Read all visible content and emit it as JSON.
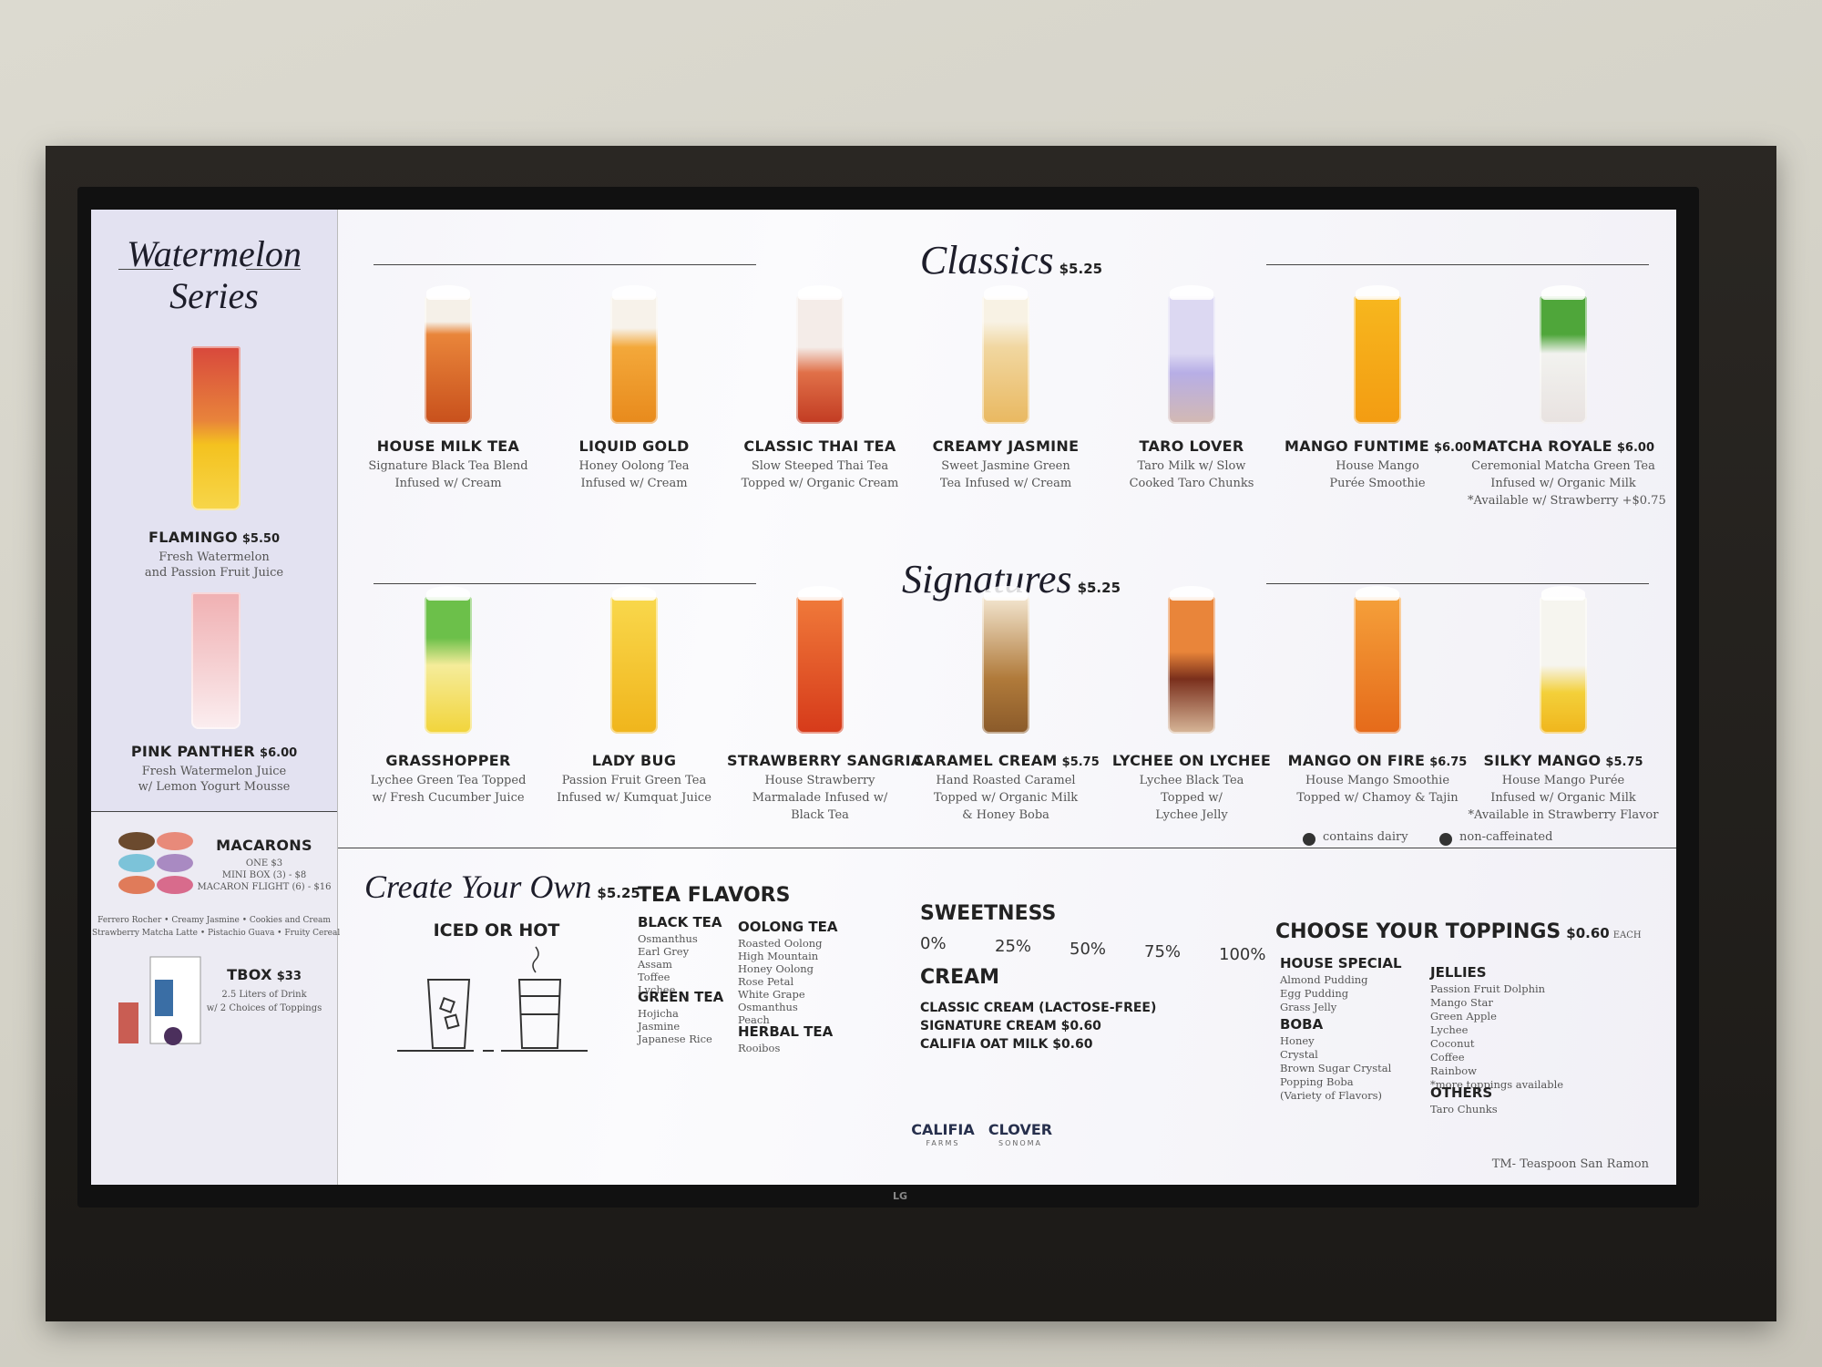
{
  "watermelon": {
    "title": [
      "Watermelon",
      "Series"
    ],
    "items": [
      {
        "name": "FLAMINGO",
        "price": "$5.50",
        "desc": [
          "Fresh Watermelon",
          "and Passion Fruit Juice"
        ]
      },
      {
        "name": "PINK PANTHER",
        "price": "$6.00",
        "desc": [
          "Fresh Watermelon Juice",
          "w/ Lemon Yogurt Mousse"
        ]
      }
    ]
  },
  "macarons": {
    "name": "MACARONS",
    "prices": [
      "ONE $3",
      "MINI BOX (3) - $8",
      "MACARON FLIGHT (6) - $16"
    ],
    "flavors": [
      "Ferrero Rocher • Creamy Jasmine • Cookies and Cream",
      "Strawberry Matcha Latte • Pistachio Guava • Fruity Cereal"
    ]
  },
  "tbox": {
    "name": "TBOX",
    "price": "$33",
    "desc": [
      "2.5 Liters of Drink",
      "w/ 2 Choices of Toppings"
    ]
  },
  "classics": {
    "title": "Classics",
    "price": "$5.25",
    "items": [
      {
        "name": "HOUSE MILK TEA",
        "desc": [
          "Signature Black Tea Blend",
          "Infused w/ Cream"
        ]
      },
      {
        "name": "LIQUID GOLD",
        "desc": [
          "Honey Oolong Tea",
          "Infused w/ Cream"
        ]
      },
      {
        "name": "CLASSIC THAI TEA",
        "desc": [
          "Slow Steeped Thai Tea",
          "Topped w/ Organic Cream"
        ]
      },
      {
        "name": "CREAMY JASMINE",
        "desc": [
          "Sweet Jasmine Green",
          "Tea Infused w/ Cream"
        ]
      },
      {
        "name": "TARO LOVER",
        "desc": [
          "Taro Milk w/ Slow",
          "Cooked Taro Chunks"
        ]
      },
      {
        "name": "MANGO FUNTIME",
        "price": "$6.00",
        "desc": [
          "House Mango",
          "Purée Smoothie"
        ]
      },
      {
        "name": "MATCHA ROYALE",
        "price": "$6.00",
        "desc": [
          "Ceremonial Matcha Green Tea",
          "Infused w/ Organic Milk",
          "*Available w/ Strawberry +$0.75"
        ]
      }
    ]
  },
  "signatures": {
    "title": "Signatures",
    "price": "$5.25",
    "items": [
      {
        "name": "GRASSHOPPER",
        "desc": [
          "Lychee Green Tea Topped",
          "w/ Fresh Cucumber Juice"
        ]
      },
      {
        "name": "LADY BUG",
        "desc": [
          "Passion Fruit Green Tea",
          "Infused w/ Kumquat Juice"
        ]
      },
      {
        "name": "STRAWBERRY SANGRIA",
        "desc": [
          "House Strawberry",
          "Marmalade Infused w/",
          "Black Tea"
        ]
      },
      {
        "name": "CARAMEL CREAM",
        "price": "$5.75",
        "desc": [
          "Hand Roasted Caramel",
          "Topped w/ Organic Milk",
          "& Honey Boba"
        ]
      },
      {
        "name": "LYCHEE ON LYCHEE",
        "desc": [
          "Lychee Black Tea",
          "Topped w/",
          "Lychee Jelly"
        ]
      },
      {
        "name": "MANGO ON FIRE",
        "price": "$6.75",
        "desc": [
          "House Mango Smoothie",
          "Topped w/ Chamoy & Tajin"
        ]
      },
      {
        "name": "SILKY MANGO",
        "price": "$5.75",
        "desc": [
          "House Mango Purée",
          "Infused w/ Organic Milk",
          "*Available in Strawberry Flavor"
        ]
      }
    ]
  },
  "legend": [
    "contains dairy",
    "non-caffeinated"
  ],
  "create_your_own": {
    "title": "Create Your Own",
    "price": "$5.25",
    "serve": "ICED OR HOT"
  },
  "tea_flavors": {
    "heading": "TEA FLAVORS",
    "groups": [
      {
        "heading": "BLACK TEA",
        "items": [
          "Osmanthus",
          "Earl Grey",
          "Assam",
          "Toffee",
          "Lychee"
        ]
      },
      {
        "heading": "GREEN TEA",
        "items": [
          "Hojicha",
          "Jasmine",
          "Japanese Rice"
        ]
      },
      {
        "heading": "OOLONG TEA",
        "items": [
          "Roasted Oolong",
          "High Mountain",
          "Honey Oolong",
          "Rose Petal",
          "White Grape",
          "Osmanthus",
          "Peach"
        ]
      },
      {
        "heading": "HERBAL TEA",
        "items": [
          "Rooibos"
        ]
      }
    ]
  },
  "sweetness": {
    "heading": "SWEETNESS",
    "levels": [
      "0%",
      "25%",
      "50%",
      "75%",
      "100%"
    ]
  },
  "cream": {
    "heading": "CREAM",
    "items": [
      "CLASSIC CREAM (LACTOSE-FREE)",
      "SIGNATURE CREAM $0.60",
      "CALIFIA OAT MILK $0.60"
    ]
  },
  "toppings": {
    "heading": "CHOOSE YOUR TOPPINGS",
    "price": "$0.60",
    "unit": "EACH",
    "groups": [
      {
        "heading": "HOUSE SPECIAL",
        "items": [
          "Almond Pudding",
          "Egg Pudding",
          "Grass Jelly"
        ]
      },
      {
        "heading": "BOBA",
        "items": [
          "Honey",
          "Crystal",
          "Brown Sugar Crystal",
          "Popping Boba",
          "(Variety of Flavors)"
        ]
      },
      {
        "heading": "JELLIES",
        "items": [
          "Passion Fruit Dolphin",
          "Mango Star",
          "Green Apple",
          "Lychee",
          "Coconut",
          "Coffee",
          "Rainbow",
          "*more toppings available"
        ]
      },
      {
        "heading": "OTHERS",
        "items": [
          "Taro Chunks"
        ]
      }
    ]
  },
  "logos": [
    {
      "name": "CALIFIA",
      "sub": "FARMS"
    },
    {
      "name": "CLOVER",
      "sub": "SONOMA"
    }
  ],
  "tv_brand": "LG",
  "footer": "TM- Teaspoon San Ramon"
}
